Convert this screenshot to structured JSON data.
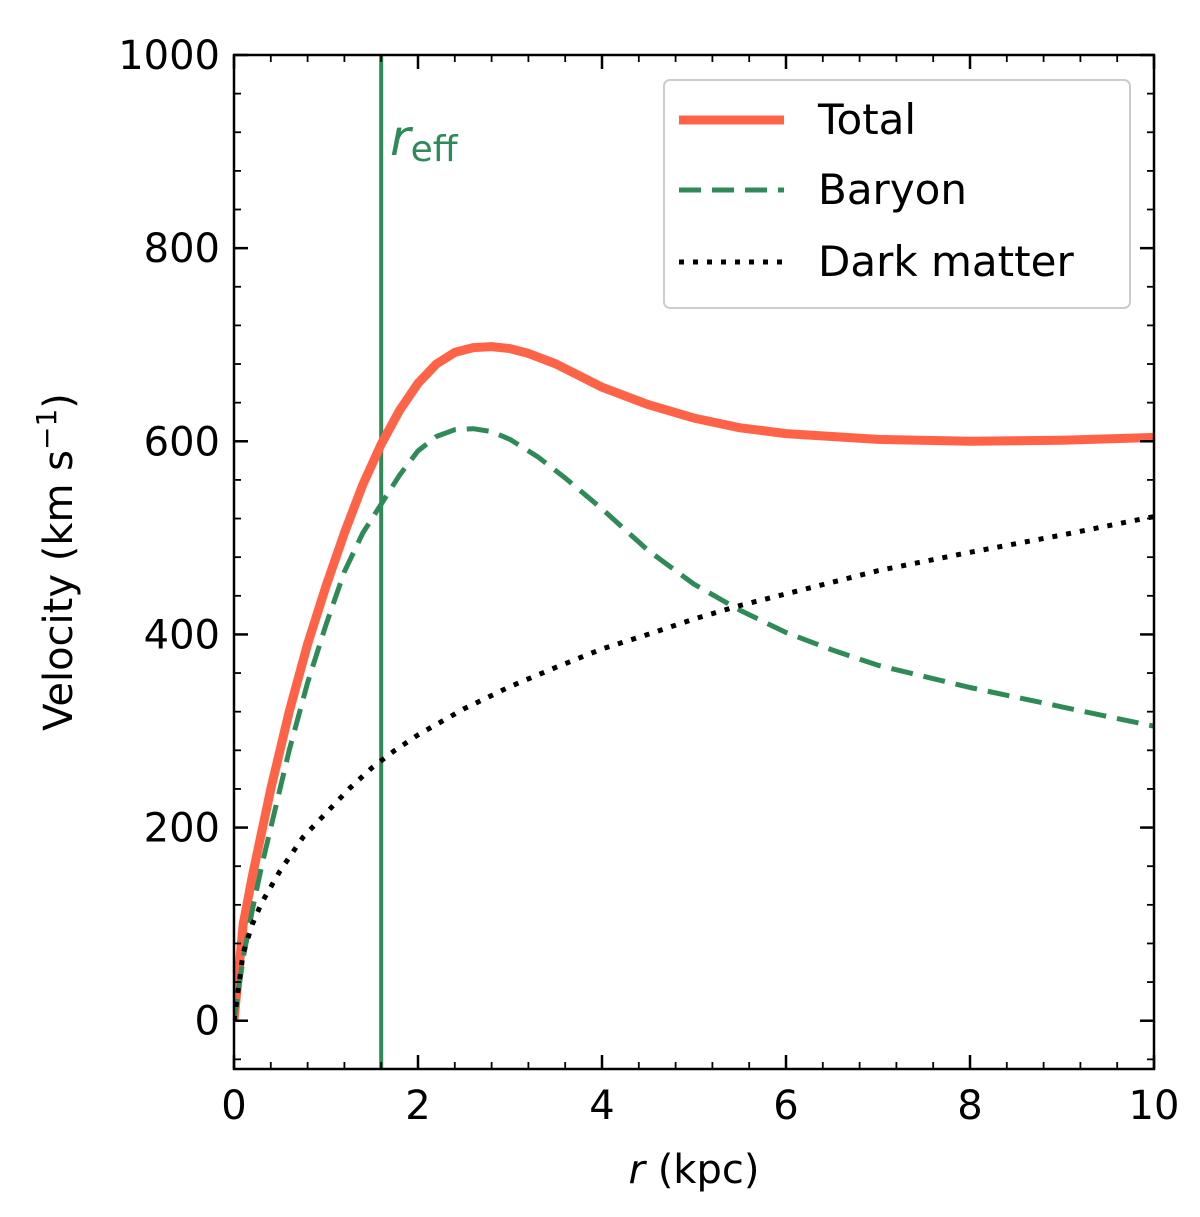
{
  "chart_data": {
    "type": "line",
    "title": "",
    "xlabel_italic": "r",
    "xlabel_rest": " (kpc)",
    "ylabel": "Velocity (km s",
    "ylabel_sup": "−1",
    "ylabel_close": ")",
    "xlim": [
      0,
      10
    ],
    "ylim": [
      -50,
      1000
    ],
    "xticks": [
      0,
      2,
      4,
      6,
      8,
      10
    ],
    "xtick_labels": [
      "0",
      "2",
      "4",
      "6",
      "8",
      "10"
    ],
    "yticks": [
      0,
      200,
      400,
      600,
      800,
      1000
    ],
    "ytick_labels": [
      "0",
      "200",
      "400",
      "600",
      "800",
      "1000"
    ],
    "annotation": {
      "base": "r",
      "subscript": "eff",
      "x_value": 1.6,
      "color": "#2e8b57"
    },
    "legend": {
      "placement": "top-right",
      "entries": [
        "Total",
        "Baryon",
        "Dark matter"
      ]
    },
    "series": [
      {
        "name": "Total",
        "color": "#ff6347",
        "style": "solid",
        "x": [
          0,
          0.1,
          0.2,
          0.3,
          0.4,
          0.6,
          0.8,
          1.0,
          1.2,
          1.4,
          1.6,
          1.8,
          2.0,
          2.2,
          2.4,
          2.6,
          2.8,
          3.0,
          3.2,
          3.5,
          4.0,
          4.5,
          5.0,
          5.5,
          6.0,
          7.0,
          8.0,
          9.0,
          10.0
        ],
        "values": [
          0,
          100,
          150,
          195,
          240,
          320,
          390,
          450,
          505,
          555,
          597,
          632,
          660,
          680,
          692,
          697,
          698,
          696,
          691,
          680,
          656,
          638,
          624,
          614,
          608,
          602,
          600,
          601,
          604
        ]
      },
      {
        "name": "Baryon",
        "color": "#2e8b57",
        "style": "dashed",
        "x": [
          0,
          0.1,
          0.2,
          0.3,
          0.4,
          0.6,
          0.8,
          1.0,
          1.2,
          1.4,
          1.6,
          1.8,
          2.0,
          2.2,
          2.4,
          2.6,
          2.8,
          3.0,
          3.3,
          3.6,
          4.0,
          4.5,
          5.0,
          5.5,
          6.0,
          6.5,
          7.0,
          8.0,
          9.0,
          10.0
        ],
        "values": [
          0,
          65,
          115,
          160,
          200,
          280,
          350,
          410,
          465,
          505,
          535,
          565,
          590,
          605,
          612,
          613,
          610,
          602,
          584,
          562,
          530,
          487,
          452,
          425,
          402,
          384,
          368,
          345,
          325,
          305
        ]
      },
      {
        "name": "Dark matter",
        "color": "#000000",
        "style": "dotted",
        "x": [
          0,
          0.1,
          0.2,
          0.3,
          0.5,
          0.75,
          1.0,
          1.25,
          1.5,
          1.75,
          2.0,
          2.5,
          3.0,
          3.5,
          4.0,
          4.5,
          5.0,
          5.5,
          6.0,
          7.0,
          8.0,
          9.0,
          10.0
        ],
        "values": [
          0,
          70,
          100,
          122,
          155,
          190,
          215,
          240,
          262,
          280,
          296,
          323,
          346,
          366,
          385,
          400,
          416,
          430,
          442,
          466,
          485,
          503,
          522
        ]
      }
    ]
  }
}
